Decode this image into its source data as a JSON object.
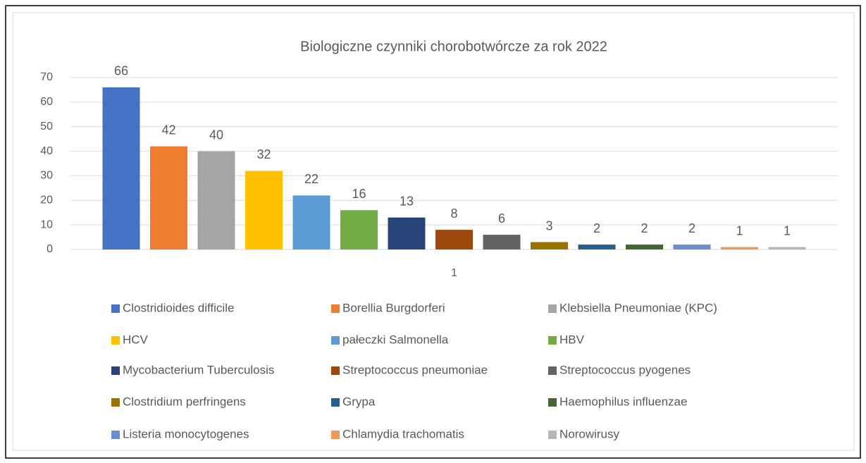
{
  "chart_data": {
    "type": "bar",
    "title": "Biologiczne czynniki chorobotwórcze za rok 2022",
    "categories": [
      "1"
    ],
    "series": [
      {
        "name": "Clostridioides difficile",
        "color": "#4472c4",
        "values": [
          66
        ]
      },
      {
        "name": "Borellia Burgdorferi",
        "color": "#ed7d31",
        "values": [
          42
        ]
      },
      {
        "name": "Klebsiella Pneumoniae (KPC)",
        "color": "#a5a5a5",
        "values": [
          40
        ]
      },
      {
        "name": "HCV",
        "color": "#ffc000",
        "values": [
          32
        ]
      },
      {
        "name": "pałeczki Salmonella",
        "color": "#5b9bd5",
        "values": [
          22
        ]
      },
      {
        "name": "HBV",
        "color": "#70ad47",
        "values": [
          16
        ]
      },
      {
        "name": "Mycobacterium Tuberculosis",
        "color": "#264478",
        "values": [
          13
        ]
      },
      {
        "name": "Streptococcus pneumoniae",
        "color": "#9e480e",
        "values": [
          8
        ]
      },
      {
        "name": "Streptococcus pyogenes",
        "color": "#636363",
        "values": [
          6
        ]
      },
      {
        "name": "Clostridium perfringens",
        "color": "#997300",
        "values": [
          3
        ]
      },
      {
        "name": "Grypa",
        "color": "#255e91",
        "values": [
          2
        ]
      },
      {
        "name": "Haemophilus influenzae",
        "color": "#43682b",
        "values": [
          2
        ]
      },
      {
        "name": "Listeria monocytogenes",
        "color": "#698ed0",
        "values": [
          2
        ]
      },
      {
        "name": "Chlamydia trachomatis",
        "color": "#f1975a",
        "values": [
          1
        ]
      },
      {
        "name": "Norowirusy",
        "color": "#b7b7b7",
        "values": [
          1
        ]
      }
    ],
    "ylim": [
      0,
      70
    ],
    "yticks": [
      0,
      10,
      20,
      30,
      40,
      50,
      60,
      70
    ],
    "grid": true,
    "legend": "bottom"
  }
}
